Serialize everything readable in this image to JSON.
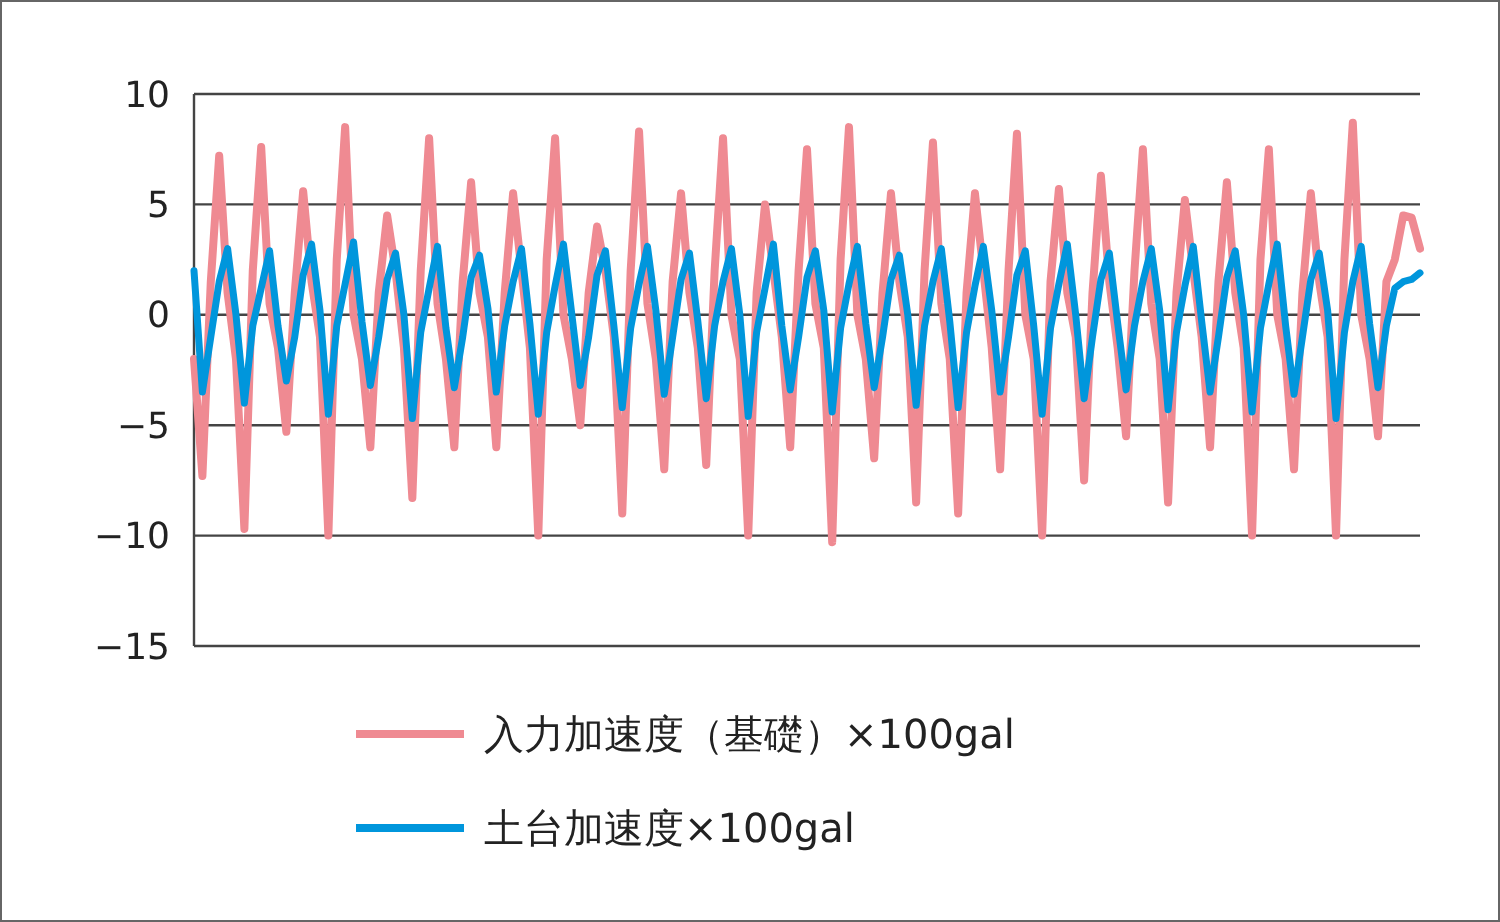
{
  "chart_data": {
    "type": "line",
    "categories": [
      null,
      null,
      null,
      null,
      null,
      null,
      null,
      null,
      null,
      null,
      null,
      null,
      null,
      null,
      null,
      null,
      null,
      null,
      null,
      null,
      null,
      null,
      null,
      null,
      null,
      null,
      null,
      null,
      null,
      null,
      null,
      null,
      null,
      null,
      null,
      null,
      null,
      null,
      null,
      null,
      null,
      null,
      null,
      null,
      null,
      null,
      null,
      null,
      null,
      null,
      null,
      null,
      null,
      null,
      null,
      null,
      null,
      null,
      null,
      null,
      null,
      null,
      null,
      null,
      null,
      null,
      null,
      null,
      null,
      null,
      null,
      null,
      null,
      null,
      null,
      null,
      null,
      null,
      null,
      null,
      null,
      null,
      null,
      null,
      null,
      null,
      null,
      null,
      null,
      null,
      null,
      null,
      null,
      null,
      null,
      null,
      null,
      null,
      null,
      null,
      null,
      null,
      null,
      null,
      null,
      null,
      null,
      null,
      null,
      null,
      null,
      null,
      null,
      null,
      null,
      null,
      null,
      null,
      null,
      null,
      null,
      null,
      null,
      null,
      null,
      null,
      null,
      null,
      null,
      null,
      null,
      null,
      null,
      null,
      null,
      null,
      null,
      null,
      null,
      null,
      null,
      null,
      null,
      null,
      null,
      null,
      null
    ],
    "series": [
      {
        "name": "入力加速度（基礎）×100gal",
        "color": "#ef8a92",
        "values": [
          -2,
          -7.3,
          1.5,
          7.2,
          1,
          -2,
          -9.7,
          2,
          7.6,
          0.5,
          -1.5,
          -5.3,
          1,
          5.6,
          1.5,
          -1,
          -10,
          2.5,
          8.5,
          0,
          -2,
          -6,
          1,
          4.5,
          2,
          -1.5,
          -8.3,
          2,
          8,
          0.5,
          -2,
          -6,
          1.5,
          6,
          1,
          -1,
          -6,
          1,
          5.5,
          2,
          -1.5,
          -10,
          2.5,
          8,
          0,
          -2,
          -5,
          1,
          4,
          2,
          -1,
          -9,
          2,
          8.3,
          0.5,
          -2,
          -7,
          1.5,
          5.5,
          1,
          -1.5,
          -6.8,
          2,
          8,
          0,
          -2,
          -10,
          1,
          5,
          2,
          -1,
          -6,
          2,
          7.5,
          0.5,
          -1.5,
          -10.3,
          2.5,
          8.5,
          0,
          -2,
          -6.5,
          1,
          5.5,
          1.5,
          -1,
          -8.5,
          2,
          7.8,
          0.5,
          -2,
          -9,
          1,
          5.5,
          2,
          -1.5,
          -7,
          2,
          8.2,
          0,
          -2,
          -10,
          1.5,
          5.7,
          1,
          -1,
          -7.5,
          1,
          6.3,
          1.5,
          -1.5,
          -5.5,
          2,
          7.5,
          0.5,
          -2,
          -8.5,
          1,
          5.2,
          2,
          -1,
          -6,
          1.5,
          6,
          1,
          -1.5,
          -10,
          2.5,
          7.5,
          0,
          -2,
          -7,
          1,
          5.5,
          1.5,
          -1,
          -10,
          2.5,
          8.7,
          0,
          -2,
          -5.5,
          1.5,
          2.5,
          4.5,
          4.4,
          3
        ]
      },
      {
        "name": "土台加速度×100gal",
        "color": "#0096dc",
        "values": [
          2,
          -3.5,
          -1,
          1.5,
          3,
          0,
          -4,
          -0.5,
          1.2,
          2.9,
          -0.5,
          -3,
          -1,
          1.8,
          3.2,
          0.2,
          -4.5,
          -0.5,
          1.4,
          3.3,
          -0.3,
          -3.2,
          -1,
          1.6,
          2.8,
          0,
          -4.7,
          -0.8,
          1.2,
          3.1,
          -0.6,
          -3.3,
          -1,
          1.7,
          2.7,
          0.3,
          -3.5,
          -0.5,
          1.5,
          3,
          -0.4,
          -4.5,
          -0.8,
          1.3,
          3.2,
          0,
          -3.2,
          -1,
          1.8,
          2.9,
          -0.5,
          -4.2,
          -0.6,
          1.4,
          3.1,
          0.2,
          -3.6,
          -1,
          1.6,
          2.8,
          -0.3,
          -3.8,
          -0.5,
          1.5,
          3,
          0,
          -4.6,
          -0.8,
          1.2,
          3.2,
          -0.5,
          -3.4,
          -1,
          1.7,
          2.9,
          0.2,
          -4.4,
          -0.6,
          1.4,
          3.1,
          -0.4,
          -3.3,
          -1,
          1.6,
          2.7,
          0,
          -4.1,
          -0.5,
          1.5,
          3,
          -0.3,
          -4.2,
          -0.8,
          1.3,
          3.1,
          0.2,
          -3.5,
          -1,
          1.8,
          2.9,
          -0.5,
          -4.5,
          -0.6,
          1.4,
          3.2,
          0,
          -3.8,
          -1,
          1.6,
          2.8,
          -0.4,
          -3.4,
          -0.5,
          1.5,
          3,
          0.2,
          -4.3,
          -0.8,
          1.3,
          3.1,
          -0.3,
          -3.5,
          -1,
          1.7,
          2.9,
          0,
          -4.4,
          -0.6,
          1.4,
          3.2,
          -0.5,
          -3.6,
          -1,
          1.6,
          2.8,
          0.2,
          -4.7,
          -0.8,
          1.5,
          3.1,
          -0.4,
          -3.3,
          -0.5,
          1.2,
          1.5,
          1.6,
          1.9
        ]
      }
    ],
    "ylim": [
      -15,
      10
    ],
    "yticks": [
      {
        "value": -15,
        "label": "−15"
      },
      {
        "value": -10,
        "label": "−10"
      },
      {
        "value": -5,
        "label": "−5"
      },
      0,
      5,
      10
    ],
    "grid": "y",
    "legend": "bottom",
    "tick_labels": "y",
    "marker": "none",
    "line_style": "solid"
  }
}
